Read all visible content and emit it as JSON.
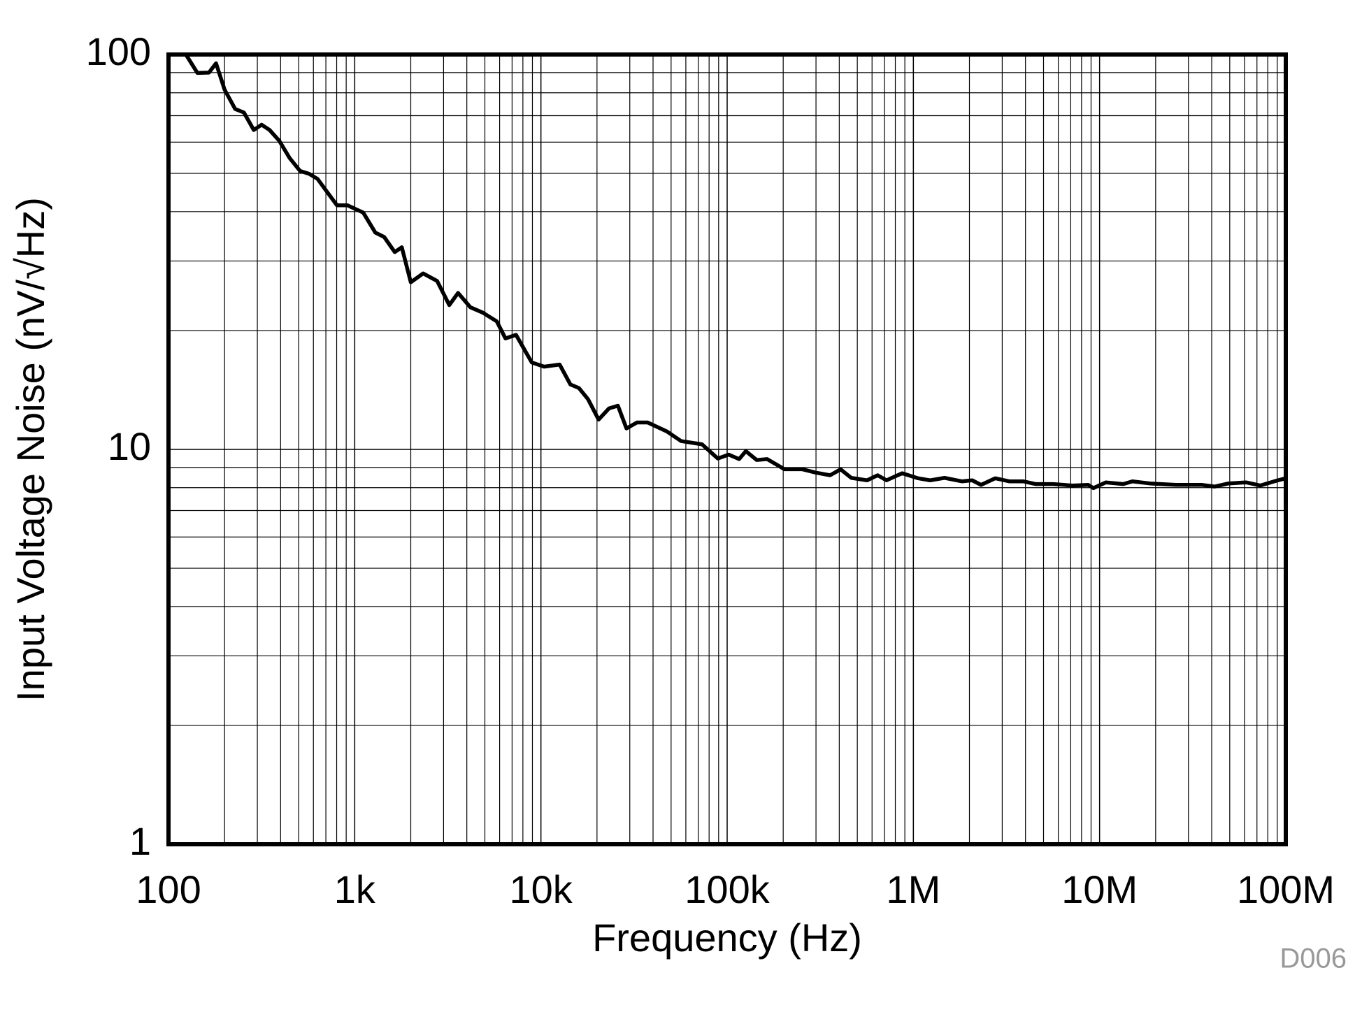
{
  "chart_data": {
    "type": "line",
    "x_label": "Frequency (Hz)",
    "y_label": "Input Voltage Noise (nV/√Hz)",
    "annotation": "D006",
    "log_x": true,
    "log_y": true,
    "grid": true,
    "minor_grid": true,
    "xlim": [
      100,
      100000000
    ],
    "ylim": [
      1,
      100
    ],
    "xticks": [
      100,
      {
        "value": 1000,
        "label": "1k"
      },
      {
        "value": 10000,
        "label": "10k"
      },
      {
        "value": 100000,
        "label": "100k"
      },
      {
        "value": 1000000,
        "label": "1M"
      },
      {
        "value": 10000000,
        "label": "10M"
      },
      {
        "value": 100000000,
        "label": "100M"
      }
    ],
    "yticks": [
      1,
      10,
      100
    ],
    "series": [
      {
        "color": "#000000",
        "x": [
          109,
          124,
          143,
          165,
          180,
          200,
          228,
          254,
          287,
          316,
          349,
          393,
          447,
          509,
          568,
          632,
          705,
          803,
          914,
          1110,
          1290,
          1440,
          1640,
          1790,
          2000,
          2330,
          2770,
          3220,
          3590,
          4180,
          4870,
          5790,
          6450,
          7350,
          8930,
          10400,
          12600,
          14400,
          16000,
          17900,
          20400,
          23200,
          25900,
          28800,
          32800,
          37400,
          47500,
          56500,
          73300,
          89100,
          102000,
          116000,
          126000,
          144000,
          164000,
          203000,
          252000,
          300000,
          357000,
          407000,
          464000,
          564000,
          643000,
          717000,
          871000,
          1060000,
          1230000,
          1470000,
          1820000,
          2070000,
          2310000,
          2750000,
          3270000,
          3890000,
          4530000,
          5620000,
          7140000,
          8690000,
          9270000,
          10800000,
          13400000,
          15000000,
          18600000,
          25700000,
          35600000,
          41500000,
          49300000,
          61200000,
          72900000,
          86700000,
          100000000
        ],
        "values": [
          100,
          100,
          89.8,
          90,
          95,
          81.5,
          72.8,
          71.3,
          64.4,
          66.4,
          64.4,
          60.5,
          54.7,
          50.7,
          49.9,
          48.4,
          45.1,
          41.5,
          41.5,
          39.8,
          35.4,
          34.5,
          31.6,
          32.5,
          26.5,
          27.9,
          26.7,
          23.2,
          24.9,
          22.9,
          22.2,
          21.1,
          19.1,
          19.5,
          16.6,
          16.2,
          16.4,
          14.6,
          14.3,
          13.4,
          11.9,
          12.7,
          12.9,
          11.3,
          11.7,
          11.7,
          11.1,
          10.5,
          10.3,
          9.48,
          9.7,
          9.45,
          9.9,
          9.4,
          9.45,
          8.91,
          8.91,
          8.73,
          8.6,
          8.9,
          8.47,
          8.35,
          8.6,
          8.35,
          8.7,
          8.45,
          8.35,
          8.47,
          8.3,
          8.35,
          8.13,
          8.45,
          8.3,
          8.3,
          8.17,
          8.17,
          8.1,
          8.13,
          7.98,
          8.25,
          8.17,
          8.3,
          8.2,
          8.13,
          8.13,
          8.05,
          8.2,
          8.25,
          8.1,
          8.3,
          8.45
        ]
      }
    ]
  }
}
